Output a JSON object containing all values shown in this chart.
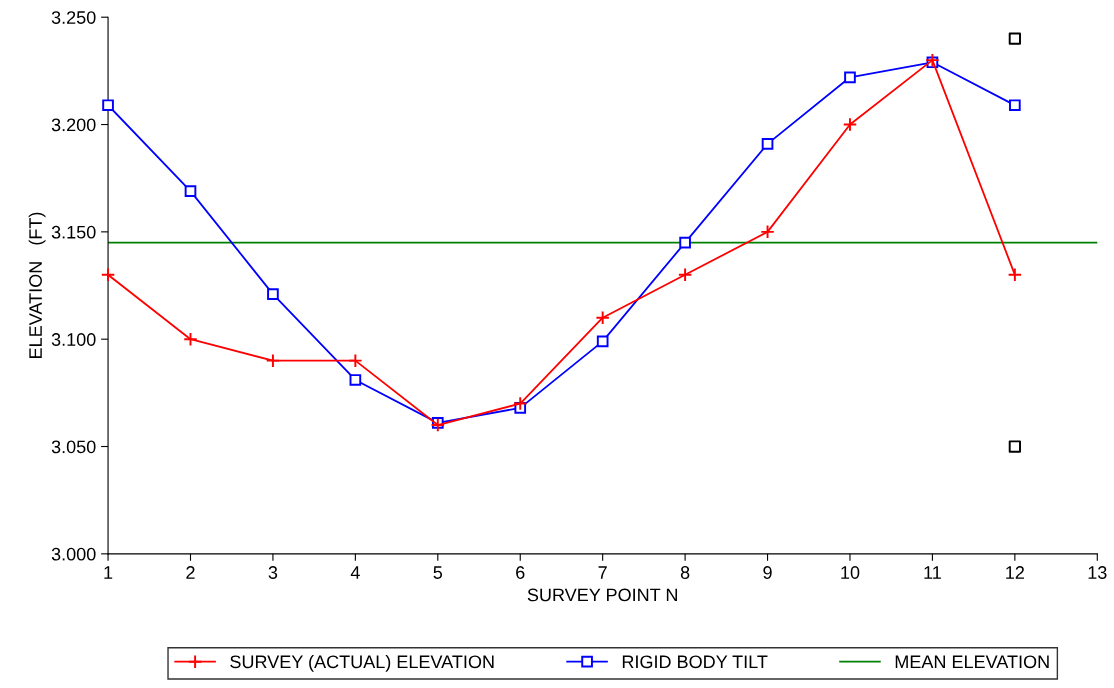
{
  "chart_data": {
    "type": "line",
    "xlabel": "SURVEY POINT N",
    "ylabel": "ELEVATION   (FT)",
    "x": [
      1,
      2,
      3,
      4,
      5,
      6,
      7,
      8,
      9,
      10,
      11,
      12
    ],
    "series": [
      {
        "name": "SURVEY (ACTUAL) ELEVATION",
        "color": "#ff0000",
        "marker": "cross",
        "values": [
          3.13,
          3.1,
          3.09,
          3.09,
          3.06,
          3.07,
          3.11,
          3.13,
          3.15,
          3.2,
          3.23,
          3.13
        ]
      },
      {
        "name": "RIGID BODY TILT",
        "color": "#0000ff",
        "marker": "square",
        "values": [
          3.209,
          3.169,
          3.121,
          3.081,
          3.061,
          3.068,
          3.099,
          3.145,
          3.191,
          3.222,
          3.229,
          3.209
        ]
      },
      {
        "type": "scatter",
        "color": "#000000",
        "marker": "square",
        "x": [
          12,
          12
        ],
        "values": [
          3.24,
          3.05
        ]
      }
    ],
    "ref_lines": [
      {
        "axis": "y",
        "value": 3.145,
        "label": "MEAN ELEVATION",
        "color": "#008000"
      }
    ],
    "xlim": [
      1,
      13
    ],
    "xticks": [
      1,
      2,
      3,
      4,
      5,
      6,
      7,
      8,
      9,
      10,
      11,
      12,
      13
    ],
    "ylim": [
      3.0,
      3.25
    ],
    "yticks": [
      {
        "value": 3.0,
        "label": "3.000"
      },
      {
        "value": 3.05,
        "label": "3.050"
      },
      {
        "value": 3.1,
        "label": "3.100"
      },
      {
        "value": 3.15,
        "label": "3.150"
      },
      {
        "value": 3.2,
        "label": "3.200"
      },
      {
        "value": 3.25,
        "label": "3.250"
      }
    ],
    "grid": false,
    "legend": "bottom",
    "line_style": "solid"
  }
}
